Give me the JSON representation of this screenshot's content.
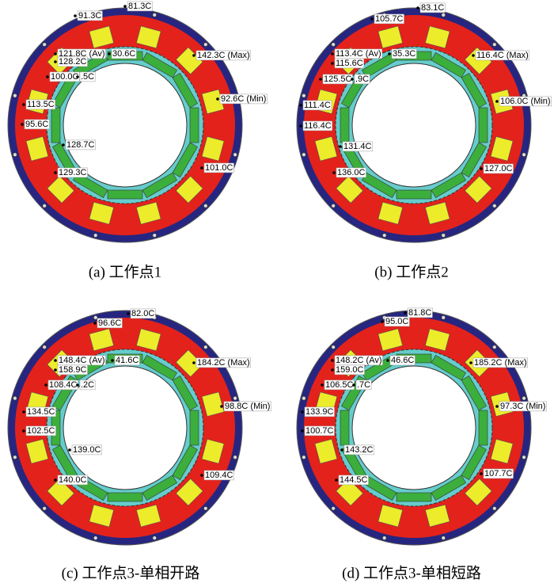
{
  "panels": [
    {
      "caption": "(a) 工作点1",
      "labels": [
        "91.3C",
        "81.3C",
        "121.8C (Av)",
        "30.6C",
        "128.2C",
        "100.0C",
        ".5C",
        "142.3C (Max)",
        "92.6C (Min)",
        "113.5C",
        "95.6C",
        "128.7C",
        "101.0C",
        "129.3C"
      ]
    },
    {
      "caption": "(b) 工作点2",
      "labels": [
        "105.7C",
        "83.1C",
        "113.4C (Av)",
        "35.3C",
        "115.6C",
        "125.5C",
        ".9C",
        "116.4C (Max)",
        "106.0C (Min)",
        "111.4C",
        "116.4C",
        "131.4C",
        "127.0C",
        "136.0C"
      ]
    },
    {
      "caption": "(c) 工作点3-单相开路",
      "labels": [
        "96.6C",
        "82.0C",
        "148.4C (Av)",
        "41.6C",
        "158.9C",
        "108.4C",
        ".2C",
        "184.2C (Max)",
        "98.8C (Min)",
        "134.5C",
        "102.5C",
        "139.0C",
        "109.4C",
        "140.0C"
      ]
    },
    {
      "caption": "(d) 工作点3-单相短路",
      "labels": [
        "95.0C",
        "81.8C",
        "148.2C (Av)",
        "46.6C",
        "159.0C",
        "106.5C",
        ".7C",
        "185.2C (Max)",
        "97.3C (Min)",
        "133.9C",
        "100.7C",
        "143.2C",
        "107.7C",
        "144.5C"
      ]
    }
  ]
}
